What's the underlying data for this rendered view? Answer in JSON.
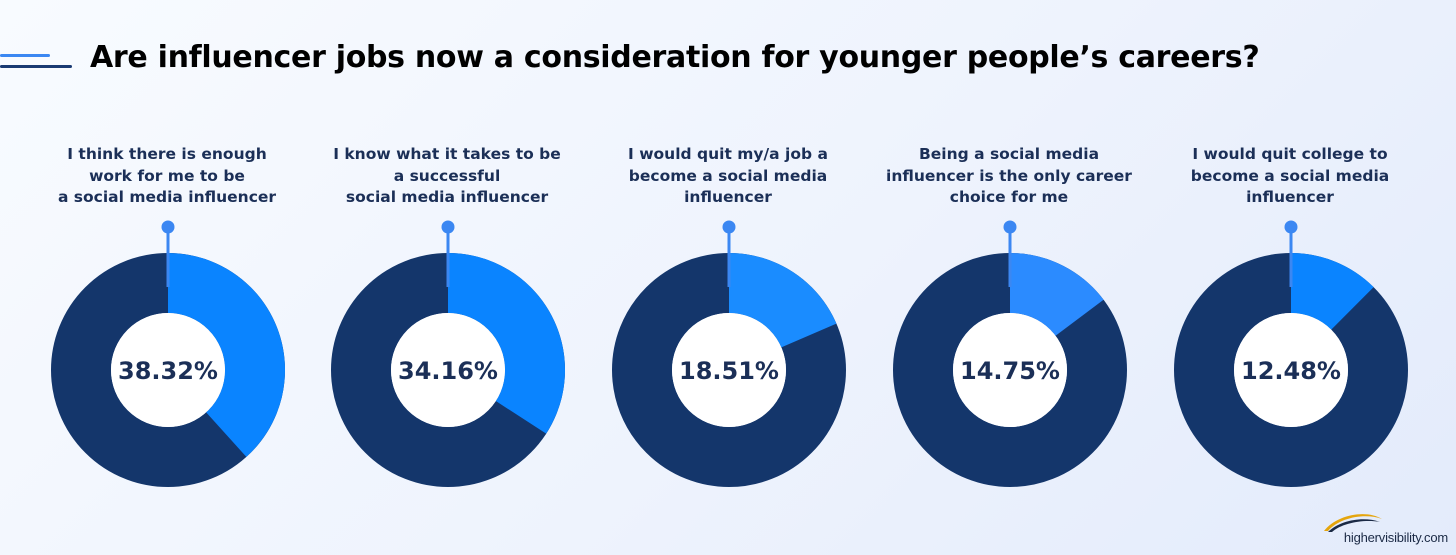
{
  "title": "Are influencer jobs now a consideration for younger people’s careers?",
  "brand": {
    "text": "highervisibility.com",
    "icon": "swoosh-logo-icon"
  },
  "colors": {
    "background": "#eef3fd",
    "ring_rest": "#14366b",
    "title": "#000000",
    "label": "#1b2f57",
    "stem": "#3b87f2",
    "accent_light": "#3b87f2",
    "accent_dark": "#1a3a73"
  },
  "chart_data": {
    "type": "pie",
    "style": "donut",
    "title": "Are influencer jobs now a consideration for younger people’s careers?",
    "series": [
      {
        "label_lines": [
          "I think there is enough",
          "work for me to be",
          "a social media influencer"
        ],
        "value": 38.32,
        "display": "38.32%",
        "color": "#0a84ff"
      },
      {
        "label_lines": [
          "I know what it takes to be",
          "a successful",
          "social media influencer"
        ],
        "value": 34.16,
        "display": "34.16%",
        "color": "#0a84ff"
      },
      {
        "label_lines": [
          "I would quit my/a job a",
          "become a social media",
          "influencer"
        ],
        "value": 18.51,
        "display": "18.51%",
        "color": "#1a8cff"
      },
      {
        "label_lines": [
          "Being a social media",
          "influencer is the only career",
          "choice for me"
        ],
        "value": 14.75,
        "display": "14.75%",
        "color": "#2b8bff"
      },
      {
        "label_lines": [
          "I would quit college to",
          "become a social media",
          "influencer"
        ],
        "value": 12.48,
        "display": "12.48%",
        "color": "#0a84ff"
      }
    ]
  }
}
